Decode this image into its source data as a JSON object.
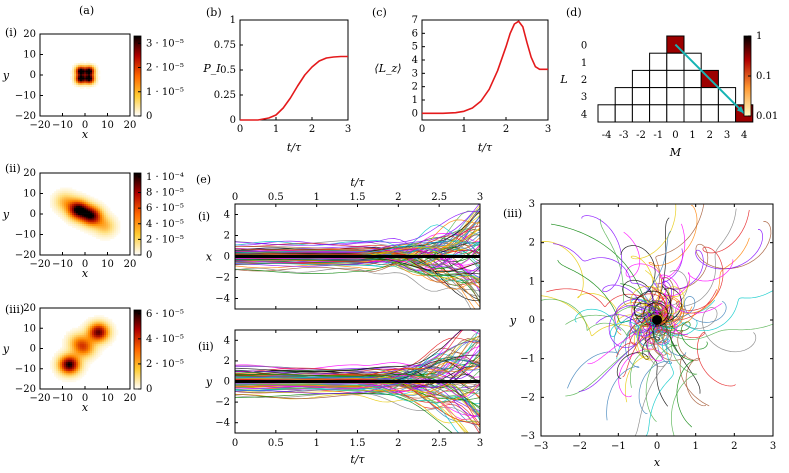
{
  "panel_labels": {
    "a": "(a)",
    "b": "(b)",
    "c": "(c)",
    "d": "(d)",
    "e": "(e)",
    "ai": "(i)",
    "aii": "(ii)",
    "aiii": "(iii)",
    "ei": "(i)",
    "eii": "(ii)",
    "eiii": "(iii)"
  },
  "chart_data": [
    {
      "id": "a-i",
      "type": "heatmap",
      "xlabel": "x",
      "ylabel": "y",
      "xlim": [
        -20,
        20
      ],
      "ylim": [
        -20,
        20
      ],
      "xticks": [
        "−20",
        "−10",
        "0",
        "10",
        "20"
      ],
      "yticks": [
        "20",
        "10",
        "0",
        "−10",
        "−20"
      ],
      "colorbar": {
        "ticks": [
          "3 · 10⁻⁵",
          "2 · 10⁻⁵",
          "1 · 10⁻⁵",
          "0"
        ],
        "values": [
          3e-05,
          2e-05,
          1e-05,
          0
        ],
        "max": 3.3e-05
      },
      "blobs": [
        {
          "x": -2,
          "y": 2,
          "amp": 1.0
        },
        {
          "x": 2,
          "y": 2,
          "amp": 1.0
        },
        {
          "x": -2,
          "y": -2,
          "amp": 1.0
        },
        {
          "x": 2,
          "y": -2,
          "amp": 1.0
        }
      ]
    },
    {
      "id": "a-ii",
      "type": "heatmap",
      "xlabel": "x",
      "ylabel": "y",
      "xlim": [
        -20,
        20
      ],
      "ylim": [
        -20,
        20
      ],
      "xticks": [
        "−20",
        "−10",
        "0",
        "10",
        "20"
      ],
      "yticks": [
        "20",
        "10",
        "0",
        "−10",
        "−20"
      ],
      "colorbar": {
        "ticks": [
          "1 · 10⁻⁴",
          "8 · 10⁻⁵",
          "6 · 10⁻⁵",
          "4 · 10⁻⁵",
          "2 · 10⁻⁵",
          "0"
        ],
        "values": [
          0.0001,
          8e-05,
          6e-05,
          4e-05,
          2e-05,
          0
        ],
        "max": 0.000105
      },
      "blobs": [
        {
          "x": -3,
          "y": 2,
          "amp": 1.0
        },
        {
          "x": 3,
          "y": -1,
          "amp": 0.9
        },
        {
          "x": -9,
          "y": 6,
          "amp": 0.3
        },
        {
          "x": 9,
          "y": -6,
          "amp": 0.3
        }
      ]
    },
    {
      "id": "a-iii",
      "type": "heatmap",
      "xlabel": "x",
      "ylabel": "y",
      "xlim": [
        -20,
        20
      ],
      "ylim": [
        -20,
        20
      ],
      "xticks": [
        "−20",
        "−10",
        "0",
        "10",
        "20"
      ],
      "yticks": [
        "20",
        "10",
        "0",
        "−10",
        "−20"
      ],
      "colorbar": {
        "ticks": [
          "6 · 10⁻⁵",
          "4 · 10⁻⁵",
          "2 · 10⁻⁵",
          "0"
        ],
        "values": [
          6e-05,
          4e-05,
          2e-05,
          0
        ],
        "max": 6.3e-05
      },
      "blobs": [
        {
          "x": 6,
          "y": 8,
          "amp": 0.9
        },
        {
          "x": -7,
          "y": -8,
          "amp": 1.0
        },
        {
          "x": 0,
          "y": 0,
          "amp": 0.45
        },
        {
          "x": -3,
          "y": 3,
          "amp": 0.35
        }
      ]
    },
    {
      "id": "b",
      "type": "line",
      "xlabel": "t/τ",
      "ylabel": "P_I",
      "xlim": [
        0,
        3
      ],
      "ylim": [
        0,
        1
      ],
      "xticks": [
        0,
        1,
        2,
        3
      ],
      "yticks": [
        0,
        0.25,
        0.5,
        0.75,
        1
      ],
      "series": [
        {
          "color": "#e41a1c",
          "x": [
            0,
            0.5,
            0.8,
            1.0,
            1.2,
            1.4,
            1.6,
            1.8,
            2.0,
            2.2,
            2.4,
            2.6,
            2.8,
            3.0
          ],
          "y": [
            0,
            0,
            0.02,
            0.05,
            0.12,
            0.22,
            0.34,
            0.45,
            0.53,
            0.59,
            0.62,
            0.63,
            0.635,
            0.635
          ]
        }
      ]
    },
    {
      "id": "c",
      "type": "line",
      "xlabel": "t/τ",
      "ylabel": "⟨L_z⟩",
      "xlim": [
        0,
        3
      ],
      "ylim": [
        -0.5,
        7
      ],
      "xticks": [
        0,
        1,
        2,
        3
      ],
      "yticks": [
        0,
        1,
        2,
        3,
        4,
        5,
        6,
        7
      ],
      "series": [
        {
          "color": "#e41a1c",
          "x": [
            0,
            0.5,
            0.8,
            1.0,
            1.2,
            1.4,
            1.6,
            1.8,
            2.0,
            2.1,
            2.2,
            2.3,
            2.4,
            2.5,
            2.6,
            2.7,
            2.8,
            3.0
          ],
          "y": [
            0,
            0,
            0.05,
            0.15,
            0.4,
            0.9,
            1.8,
            3.2,
            5.0,
            6.0,
            6.7,
            6.9,
            6.5,
            5.3,
            4.2,
            3.5,
            3.3,
            3.3
          ]
        }
      ]
    },
    {
      "id": "d",
      "type": "heatmap",
      "xlabel": "M",
      "ylabel": "L",
      "xticks": [
        "-4",
        "-3",
        "-2",
        "-1",
        "0",
        "1",
        "2",
        "3",
        "4"
      ],
      "yticks": [
        "0",
        "1",
        "2",
        "3",
        "4"
      ],
      "colorbar": {
        "scale": "log",
        "ticks": [
          "1",
          "0.1",
          "0.01"
        ],
        "values": [
          1,
          0.1,
          0.01
        ]
      },
      "filled_cells": [
        {
          "L": 0,
          "M": 0,
          "value": 0.9
        },
        {
          "L": 2,
          "M": 2,
          "value": 0.6
        },
        {
          "L": 4,
          "M": 4,
          "value": 0.9
        }
      ],
      "arrow": {
        "from": {
          "L": 0,
          "M": 0
        },
        "to": {
          "L": 4,
          "M": 4
        },
        "color": "#17b3b3"
      }
    },
    {
      "id": "e-i",
      "type": "line",
      "xlabel": "t/τ",
      "ylabel": "x",
      "xlim": [
        0,
        3
      ],
      "ylim": [
        -5,
        5
      ],
      "xticks": [
        "0",
        "0.5",
        "1",
        "1.5",
        "2",
        "2.5",
        "3"
      ],
      "yticks": [
        "4",
        "2",
        "0",
        "−2",
        "−4"
      ],
      "trajectories": 90,
      "mean": 0,
      "spread": 1.2,
      "branch_time": 1.5
    },
    {
      "id": "e-ii",
      "type": "line",
      "xlabel": "t/τ",
      "ylabel": "y",
      "xlim": [
        0,
        3
      ],
      "ylim": [
        -5,
        5
      ],
      "xticks": [
        "0",
        "0.5",
        "1",
        "1.5",
        "2",
        "2.5",
        "3"
      ],
      "yticks": [
        "4",
        "2",
        "0",
        "−2",
        "−4"
      ],
      "trajectories": 90,
      "mean": 0,
      "spread": 1.2,
      "branch_time": 1.5
    },
    {
      "id": "e-iii",
      "type": "scatter",
      "xlabel": "x",
      "ylabel": "y",
      "xlim": [
        -3,
        3
      ],
      "ylim": [
        -3,
        3
      ],
      "xticks": [
        "−3",
        "−2",
        "−1",
        "0",
        "1",
        "2",
        "3"
      ],
      "yticks": [
        "3",
        "2",
        "1",
        "0",
        "−1",
        "−2",
        "−3"
      ],
      "trajectories": 90
    }
  ],
  "palette": [
    "#e41a1c",
    "#4daf4a",
    "#377eb8",
    "#ff00ff",
    "#00c8c8",
    "#e6c800",
    "#000000",
    "#808080",
    "#ff8000",
    "#8000ff",
    "#008000",
    "#a0522d"
  ]
}
